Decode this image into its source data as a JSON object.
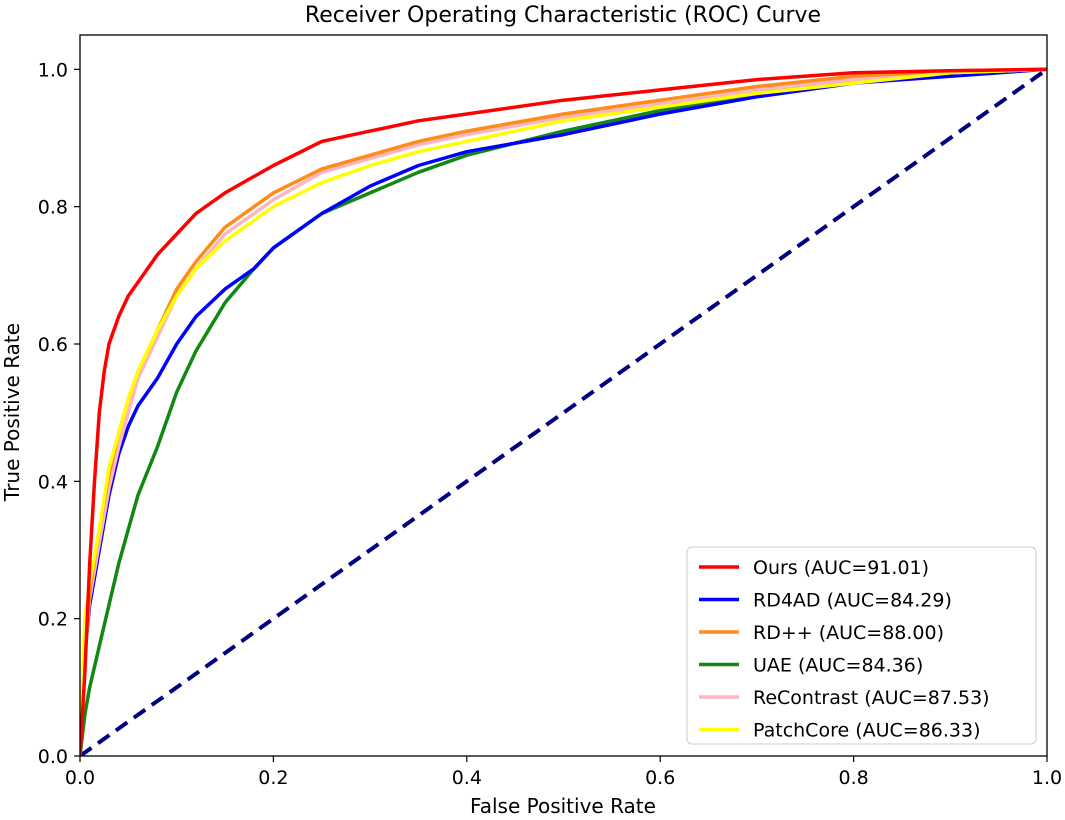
{
  "chart_data": {
    "type": "line",
    "title": "Receiver Operating Characteristic (ROC) Curve",
    "xlabel": "False Positive Rate",
    "ylabel": "True Positive Rate",
    "xlim": [
      0.0,
      1.0
    ],
    "ylim": [
      0.0,
      1.05
    ],
    "xticks": [
      0.0,
      0.2,
      0.4,
      0.6,
      0.8,
      1.0
    ],
    "yticks": [
      0.0,
      0.2,
      0.4,
      0.6,
      0.8,
      1.0
    ],
    "xtick_labels": [
      "0.0",
      "0.2",
      "0.4",
      "0.6",
      "0.8",
      "1.0"
    ],
    "ytick_labels": [
      "0.0",
      "0.2",
      "0.4",
      "0.6",
      "0.8",
      "1.0"
    ],
    "grid": false,
    "legend_position": "lower-right",
    "series": [
      {
        "name": "Ours (AUC=91.01)",
        "color": "#ff0000",
        "x": [
          0,
          0.005,
          0.01,
          0.015,
          0.02,
          0.025,
          0.03,
          0.04,
          0.05,
          0.06,
          0.08,
          0.1,
          0.12,
          0.15,
          0.2,
          0.25,
          0.3,
          0.35,
          0.4,
          0.5,
          0.6,
          0.7,
          0.8,
          0.9,
          1.0
        ],
        "y": [
          0,
          0.12,
          0.28,
          0.4,
          0.5,
          0.56,
          0.6,
          0.64,
          0.67,
          0.69,
          0.73,
          0.76,
          0.79,
          0.82,
          0.86,
          0.895,
          0.91,
          0.925,
          0.935,
          0.955,
          0.97,
          0.985,
          0.995,
          0.998,
          1.0
        ]
      },
      {
        "name": "RD4AD (AUC=84.29)",
        "color": "#0000ff",
        "x": [
          0,
          0.005,
          0.01,
          0.02,
          0.03,
          0.04,
          0.05,
          0.06,
          0.08,
          0.1,
          0.12,
          0.15,
          0.18,
          0.2,
          0.25,
          0.3,
          0.35,
          0.4,
          0.5,
          0.6,
          0.7,
          0.8,
          0.9,
          1.0
        ],
        "y": [
          0,
          0.15,
          0.22,
          0.3,
          0.38,
          0.44,
          0.48,
          0.51,
          0.55,
          0.6,
          0.64,
          0.68,
          0.71,
          0.74,
          0.79,
          0.83,
          0.86,
          0.88,
          0.905,
          0.935,
          0.96,
          0.98,
          0.99,
          1.0
        ]
      },
      {
        "name": "RD++ (AUC=88.00)",
        "color": "#ff8c1a",
        "x": [
          0,
          0.005,
          0.01,
          0.02,
          0.03,
          0.04,
          0.05,
          0.06,
          0.08,
          0.1,
          0.12,
          0.15,
          0.2,
          0.25,
          0.3,
          0.35,
          0.4,
          0.5,
          0.6,
          0.7,
          0.8,
          0.9,
          1.0
        ],
        "y": [
          0,
          0.14,
          0.24,
          0.33,
          0.41,
          0.47,
          0.52,
          0.56,
          0.62,
          0.68,
          0.72,
          0.77,
          0.82,
          0.855,
          0.875,
          0.895,
          0.91,
          0.935,
          0.955,
          0.975,
          0.99,
          0.998,
          1.0
        ]
      },
      {
        "name": "UAE (AUC=84.36)",
        "color": "#118811",
        "x": [
          0,
          0.005,
          0.01,
          0.02,
          0.03,
          0.04,
          0.05,
          0.06,
          0.08,
          0.1,
          0.12,
          0.15,
          0.18,
          0.2,
          0.25,
          0.3,
          0.35,
          0.4,
          0.5,
          0.6,
          0.7,
          0.8,
          0.9,
          1.0
        ],
        "y": [
          0,
          0.06,
          0.1,
          0.16,
          0.22,
          0.28,
          0.33,
          0.38,
          0.45,
          0.53,
          0.59,
          0.66,
          0.71,
          0.74,
          0.79,
          0.82,
          0.85,
          0.875,
          0.91,
          0.94,
          0.965,
          0.985,
          0.995,
          1.0
        ]
      },
      {
        "name": "ReContrast (AUC=87.53)",
        "color": "#ffb6c1",
        "x": [
          0,
          0.005,
          0.01,
          0.02,
          0.03,
          0.04,
          0.05,
          0.06,
          0.08,
          0.1,
          0.12,
          0.15,
          0.2,
          0.25,
          0.3,
          0.35,
          0.4,
          0.5,
          0.6,
          0.7,
          0.8,
          0.9,
          1.0
        ],
        "y": [
          0,
          0.15,
          0.23,
          0.31,
          0.39,
          0.45,
          0.5,
          0.55,
          0.61,
          0.67,
          0.71,
          0.76,
          0.81,
          0.85,
          0.87,
          0.89,
          0.905,
          0.93,
          0.95,
          0.97,
          0.985,
          0.995,
          1.0
        ]
      },
      {
        "name": "PatchCore (AUC=86.33)",
        "color": "#ffff00",
        "x": [
          0,
          0.005,
          0.01,
          0.02,
          0.03,
          0.04,
          0.05,
          0.06,
          0.08,
          0.1,
          0.12,
          0.15,
          0.2,
          0.25,
          0.3,
          0.35,
          0.4,
          0.5,
          0.6,
          0.7,
          0.8,
          0.9,
          1.0
        ],
        "y": [
          0,
          0.2,
          0.25,
          0.33,
          0.42,
          0.47,
          0.52,
          0.56,
          0.62,
          0.67,
          0.71,
          0.75,
          0.8,
          0.835,
          0.86,
          0.88,
          0.895,
          0.925,
          0.945,
          0.965,
          0.98,
          0.995,
          1.0
        ]
      }
    ],
    "reference_line": {
      "color": "#000080",
      "style": "dashed",
      "x": [
        0,
        1
      ],
      "y": [
        0,
        1
      ]
    }
  }
}
